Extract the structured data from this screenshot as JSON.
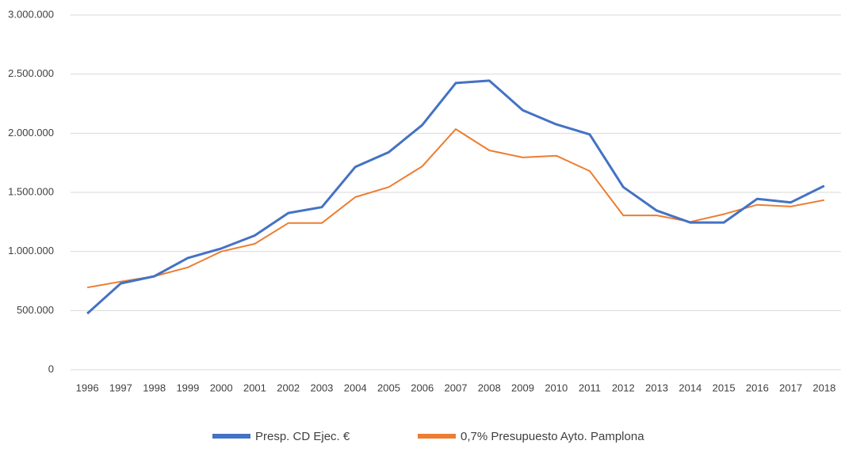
{
  "chart_data": {
    "type": "line",
    "categories": [
      "1996",
      "1997",
      "1998",
      "1999",
      "2000",
      "2001",
      "2002",
      "2003",
      "2004",
      "2005",
      "2006",
      "2007",
      "2008",
      "2009",
      "2010",
      "2011",
      "2012",
      "2013",
      "2014",
      "2015",
      "2016",
      "2017",
      "2018"
    ],
    "series": [
      {
        "name": "Presp. CD Ejec. €",
        "color": "#4472c4",
        "values": [
          475000,
          730000,
          790000,
          945000,
          1025000,
          1135000,
          1325000,
          1375000,
          1715000,
          1840000,
          2070000,
          2425000,
          2445000,
          2195000,
          2075000,
          1990000,
          1545000,
          1345000,
          1245000,
          1245000,
          1445000,
          1415000,
          1555000
        ]
      },
      {
        "name": "0,7% Presupuesto Ayto. Pamplona",
        "color": "#ed7d31",
        "values": [
          695000,
          745000,
          790000,
          865000,
          1000000,
          1065000,
          1240000,
          1240000,
          1460000,
          1545000,
          1720000,
          2035000,
          1855000,
          1795000,
          1810000,
          1680000,
          1305000,
          1305000,
          1250000,
          1315000,
          1395000,
          1380000,
          1435000
        ]
      }
    ],
    "ylim": [
      0,
      3000000
    ],
    "yticks": [
      0,
      {
        "value": 500000,
        "label": "500.000"
      },
      {
        "value": 1000000,
        "label": "1.000.000"
      },
      {
        "value": 1500000,
        "label": "1.500.000"
      },
      {
        "value": 2000000,
        "label": "2.000.000"
      },
      {
        "value": 2500000,
        "label": "2.500.000"
      },
      {
        "value": 3000000,
        "label": "3.000.000"
      }
    ],
    "grid": true,
    "legend": "bottom"
  }
}
